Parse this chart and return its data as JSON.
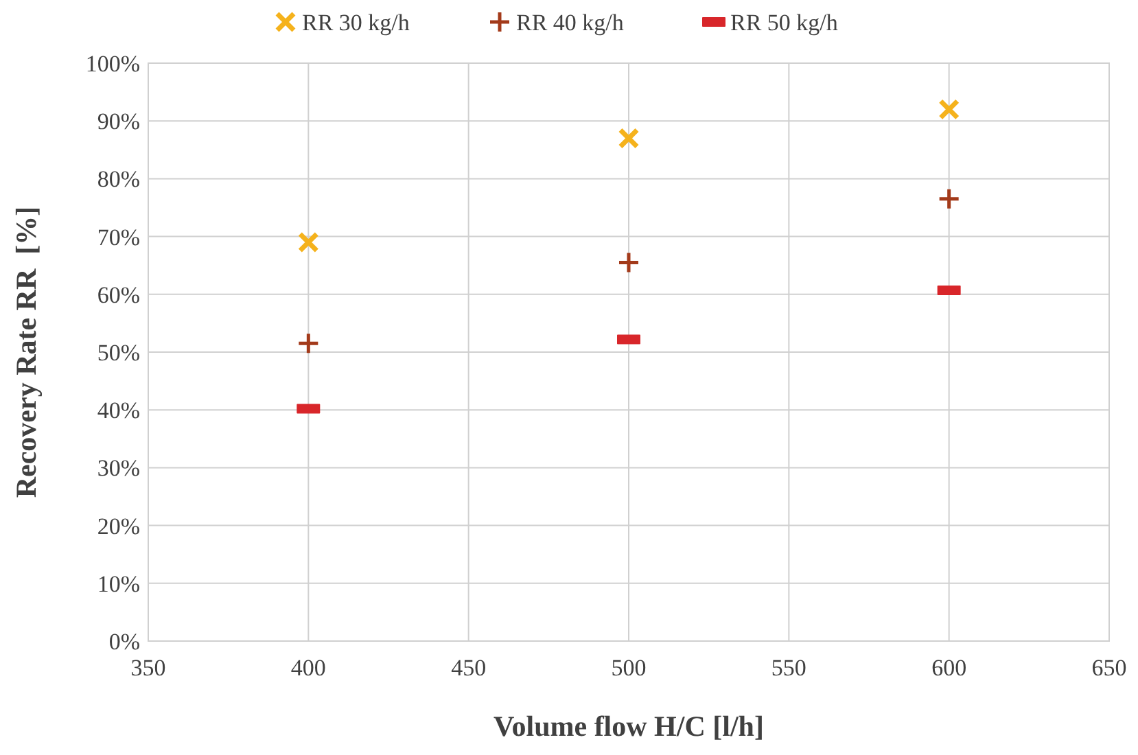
{
  "chart_data": {
    "type": "scatter",
    "xlabel": "Volume flow H/C [l/h]",
    "ylabel": "Recovery Rate RR  [%]",
    "x": [
      400,
      500,
      600
    ],
    "series": [
      {
        "name": "RR 30 kg/h",
        "color": "#f5b21c",
        "marker": "x",
        "values": [
          69,
          87,
          92
        ]
      },
      {
        "name": "RR 40 kg/h",
        "color": "#a33a1a",
        "marker": "cross",
        "values": [
          51.5,
          65.5,
          76.5
        ]
      },
      {
        "name": "RR 50 kg/h",
        "color": "#d8262a",
        "values": [
          40.2,
          52.2,
          60.7
        ]
      }
    ],
    "xlim": [
      350,
      650
    ],
    "xticks": [
      350,
      400,
      450,
      500,
      550,
      600,
      650
    ],
    "ylim": [
      0,
      100
    ],
    "yticks": [
      {
        "value": 0,
        "label": "0%"
      },
      {
        "value": 10,
        "label": "10%"
      },
      {
        "value": 20,
        "label": "20%"
      },
      {
        "value": 30,
        "label": "30%"
      },
      {
        "value": 40,
        "label": "40%"
      },
      {
        "value": 50,
        "label": "50%"
      },
      {
        "value": 60,
        "label": "60%"
      },
      {
        "value": 70,
        "label": "70%"
      },
      {
        "value": 80,
        "label": "80%"
      },
      {
        "value": 90,
        "label": "90%"
      },
      {
        "value": 100,
        "label": "100%"
      }
    ],
    "grid": true,
    "legend": "top"
  }
}
